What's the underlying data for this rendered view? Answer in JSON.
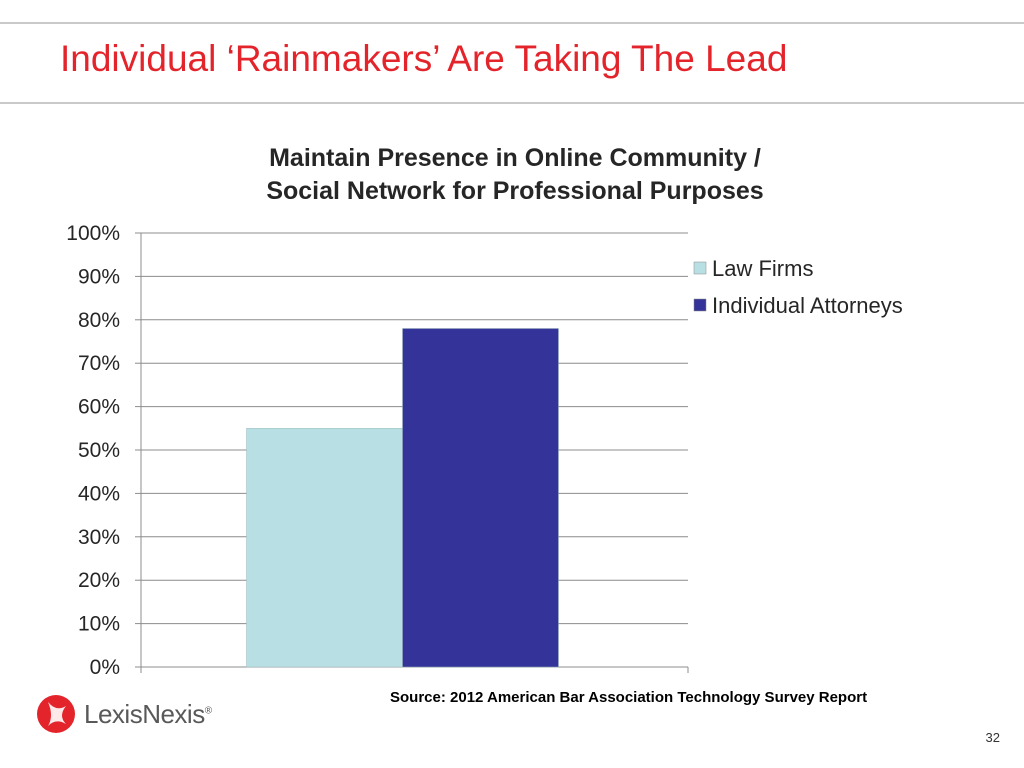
{
  "slide": {
    "title": "Individual ‘Rainmakers’ Are Taking The Lead",
    "source": "Source: 2012 American Bar Association Technology Survey Report",
    "page_number": "32"
  },
  "logo": {
    "text": "LexisNexis",
    "registered": "®",
    "color": "#e3242b"
  },
  "chart_data": {
    "type": "bar",
    "title_lines": [
      "Maintain Presence in Online Community /",
      "Social Network for Professional Purposes"
    ],
    "categories": [
      ""
    ],
    "series": [
      {
        "name": "Law Firms",
        "values": [
          55
        ],
        "color": "#b8e0e4"
      },
      {
        "name": "Individual Attorneys",
        "values": [
          78
        ],
        "color": "#333399"
      }
    ],
    "yticks": [
      "0%",
      "10%",
      "20%",
      "30%",
      "40%",
      "50%",
      "60%",
      "70%",
      "80%",
      "90%",
      "100%"
    ],
    "ylim": [
      0,
      100
    ],
    "grid": true,
    "legend": "top-right"
  }
}
